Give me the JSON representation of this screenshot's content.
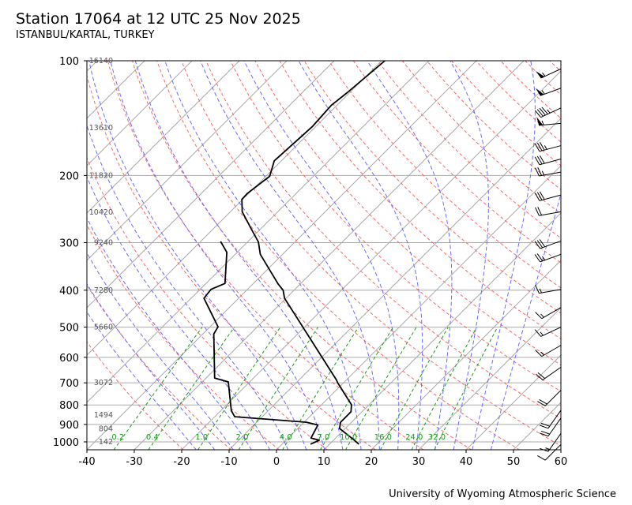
{
  "header": {
    "title": "Station 17064 at 12 UTC 25 Nov 2025",
    "subtitle": "ISTANBUL/KARTAL, TURKEY"
  },
  "footer": "University of Wyoming Atmospheric Science",
  "chart_data": {
    "type": "line",
    "subtype": "skew-t log-p",
    "title": "Station 17064 at 12 UTC 25 Nov 2025",
    "xlabel": "",
    "ylabel": "",
    "xlim": [
      -40,
      60
    ],
    "ylim": [
      1050,
      100
    ],
    "x_ticks": [
      "-40",
      "-30",
      "-20",
      "-10",
      "0",
      "10",
      "20",
      "30",
      "40",
      "50",
      "60"
    ],
    "y_ticks": [
      "100",
      "200",
      "300",
      "400",
      "500",
      "600",
      "700",
      "800",
      "900",
      "1000"
    ],
    "grid": true,
    "height_labels": [
      {
        "p": 100,
        "label": "16140"
      },
      {
        "p": 150,
        "label": "13610"
      },
      {
        "p": 200,
        "label": "11820"
      },
      {
        "p": 250,
        "label": "10420"
      },
      {
        "p": 300,
        "label": "9240"
      },
      {
        "p": 400,
        "label": "7280"
      },
      {
        "p": 500,
        "label": "5660"
      },
      {
        "p": 700,
        "label": "3072"
      },
      {
        "p": 850,
        "label": "1494"
      },
      {
        "p": 925,
        "label": "804"
      },
      {
        "p": 1000,
        "label": "142"
      }
    ],
    "mixing_ratio_labels": [
      "0.2",
      "0.4",
      "1.0",
      "2.0",
      "4.0",
      "7.0",
      "10.0",
      "16.0",
      "24.0",
      "32.0"
    ],
    "series": [
      {
        "name": "Temperature",
        "color": "#000000",
        "p": [
          1014,
          985,
          922,
          888,
          859,
          834,
          799,
          699,
          689,
          420,
          400,
          385,
          322,
          299,
          276,
          249,
          231,
          223,
          201,
          183,
          149,
          131,
          121,
          100
        ],
        "t": [
          16.2,
          14.0,
          8.8,
          7.7,
          7.7,
          7.7,
          6.3,
          -1.3,
          -2.0,
          -30.3,
          -32.3,
          -34.7,
          -44.7,
          -47.7,
          -52.0,
          -57.5,
          -60.2,
          -60.3,
          -59.2,
          -61.5,
          -60.7,
          -61.2,
          -60.5,
          -59.3
        ]
      },
      {
        "name": "Dewpoint",
        "color": "#000000",
        "p": [
          1014,
          990,
          977,
          903,
          888,
          859,
          828,
          696,
          680,
          521,
          499,
          420,
          398,
          384,
          318,
          298
        ],
        "t": [
          6.0,
          7.0,
          4.8,
          3.5,
          0.5,
          -15.8,
          -17.8,
          -24.5,
          -28.2,
          -37.7,
          -38.3,
          -47.3,
          -47.7,
          -46.0,
          -52.2,
          -55.8
        ]
      }
    ],
    "wind_barbs": {
      "units": "knots",
      "p": [
        105,
        118,
        133,
        146,
        167,
        181,
        196,
        225,
        249,
        297,
        322,
        398,
        444,
        500,
        558,
        637,
        732,
        826,
        866,
        950,
        1016
      ],
      "dir": [
        245,
        250,
        245,
        265,
        255,
        255,
        260,
        255,
        260,
        250,
        250,
        260,
        240,
        245,
        240,
        235,
        225,
        215,
        215,
        215,
        225
      ],
      "spd": [
        55,
        55,
        45,
        55,
        35,
        30,
        25,
        30,
        20,
        30,
        25,
        15,
        15,
        15,
        15,
        20,
        20,
        20,
        20,
        15,
        10
      ]
    }
  },
  "colors": {
    "dry_adiabat": "#ff6666",
    "moist_adiabat": "#6b6bff",
    "mixing_ratio": "#1a9a1a",
    "grid": "#aaaaaa"
  }
}
